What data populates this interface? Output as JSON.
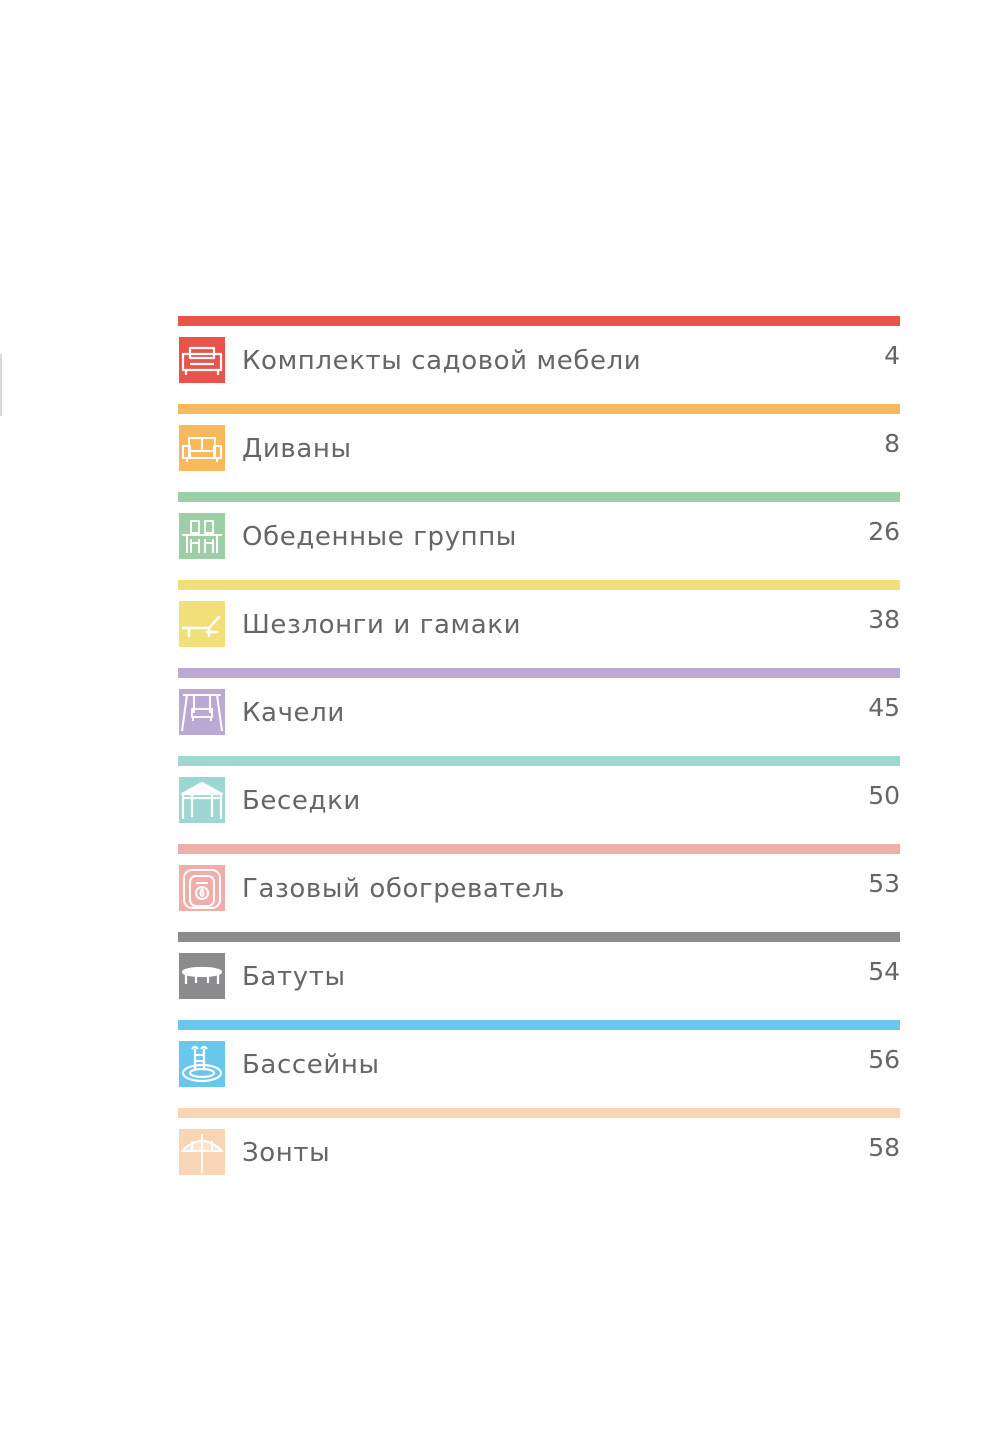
{
  "toc": {
    "entries": [
      {
        "title": "Комплекты садовой мебели",
        "page": "4",
        "icon": "furniture-set-icon",
        "color": "#e8534a"
      },
      {
        "title": "Диваны",
        "page": "8",
        "icon": "sofa-icon",
        "color": "#f8b85c"
      },
      {
        "title": "Обеденные группы",
        "page": "26",
        "icon": "dining-group-icon",
        "color": "#9ccfa5"
      },
      {
        "title": "Шезлонги и гамаки",
        "page": "38",
        "icon": "lounger-icon",
        "color": "#f1e07a"
      },
      {
        "title": "Качели",
        "page": "45",
        "icon": "swing-icon",
        "color": "#bba8d4"
      },
      {
        "title": "Беседки",
        "page": "50",
        "icon": "gazebo-icon",
        "color": "#9dd7d1"
      },
      {
        "title": "Газовый обогреватель",
        "page": "53",
        "icon": "gas-heater-icon",
        "color": "#f0aeab"
      },
      {
        "title": "Батуты",
        "page": "54",
        "icon": "trampoline-icon",
        "color": "#8c8c8e"
      },
      {
        "title": "Бассейны",
        "page": "56",
        "icon": "pool-icon",
        "color": "#69c7ee"
      },
      {
        "title": "Зонты",
        "page": "58",
        "icon": "umbrella-icon",
        "color": "#f9d4b5"
      }
    ]
  }
}
